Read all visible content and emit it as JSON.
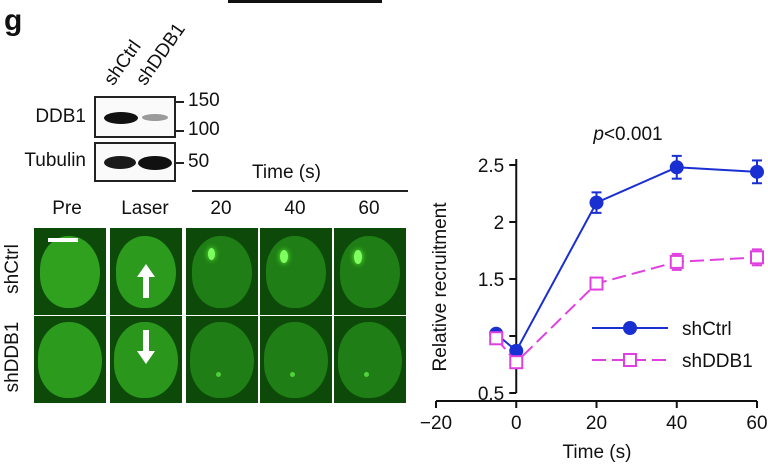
{
  "figure": {
    "panel_letter": "g",
    "blot": {
      "lanes": [
        "shCtrl",
        "shDDB1"
      ],
      "rows": [
        {
          "label": "DDB1",
          "markers": [
            "150",
            "100"
          ]
        },
        {
          "label": "Tubulin",
          "markers": [
            "50"
          ]
        }
      ]
    },
    "imaging": {
      "time_header": "Time (s)",
      "columns": [
        "Pre",
        "Laser",
        "20",
        "40",
        "60"
      ],
      "rows": [
        "shCtrl",
        "shDDB1"
      ]
    }
  },
  "chart_data": {
    "type": "line",
    "annotation": "p<0.001",
    "annotation_parts": {
      "italic": "p",
      "rest": "<0.001"
    },
    "xlabel": "Time (s)",
    "ylabel": "Relative recruitment",
    "xlim": [
      -20,
      60
    ],
    "ylim": [
      0.5,
      2.5
    ],
    "xticks": [
      -20,
      0,
      20,
      40,
      60
    ],
    "xtick_labels": [
      "−20",
      "0",
      "20",
      "40",
      "60"
    ],
    "yticks": [
      0.5,
      1,
      1.5,
      2,
      2.5
    ],
    "ytick_labels": [
      "0.5",
      "1",
      "1.5",
      "2",
      "2.5"
    ],
    "legend_position": "lower-right",
    "series": [
      {
        "name": "shCtrl",
        "color": "#1a2fd1",
        "style": "solid",
        "marker": "filled-circle",
        "x": [
          -5,
          0,
          20,
          40,
          60
        ],
        "y": [
          1.02,
          0.87,
          2.17,
          2.48,
          2.44
        ],
        "err": [
          0.03,
          0.04,
          0.09,
          0.1,
          0.1
        ]
      },
      {
        "name": "shDDB1",
        "color": "#e040e0",
        "style": "dashed",
        "marker": "open-square",
        "x": [
          -5,
          0,
          20,
          40,
          60
        ],
        "y": [
          0.98,
          0.77,
          1.46,
          1.65,
          1.69
        ],
        "err": [
          0.03,
          0.04,
          0.04,
          0.07,
          0.07
        ]
      }
    ]
  }
}
